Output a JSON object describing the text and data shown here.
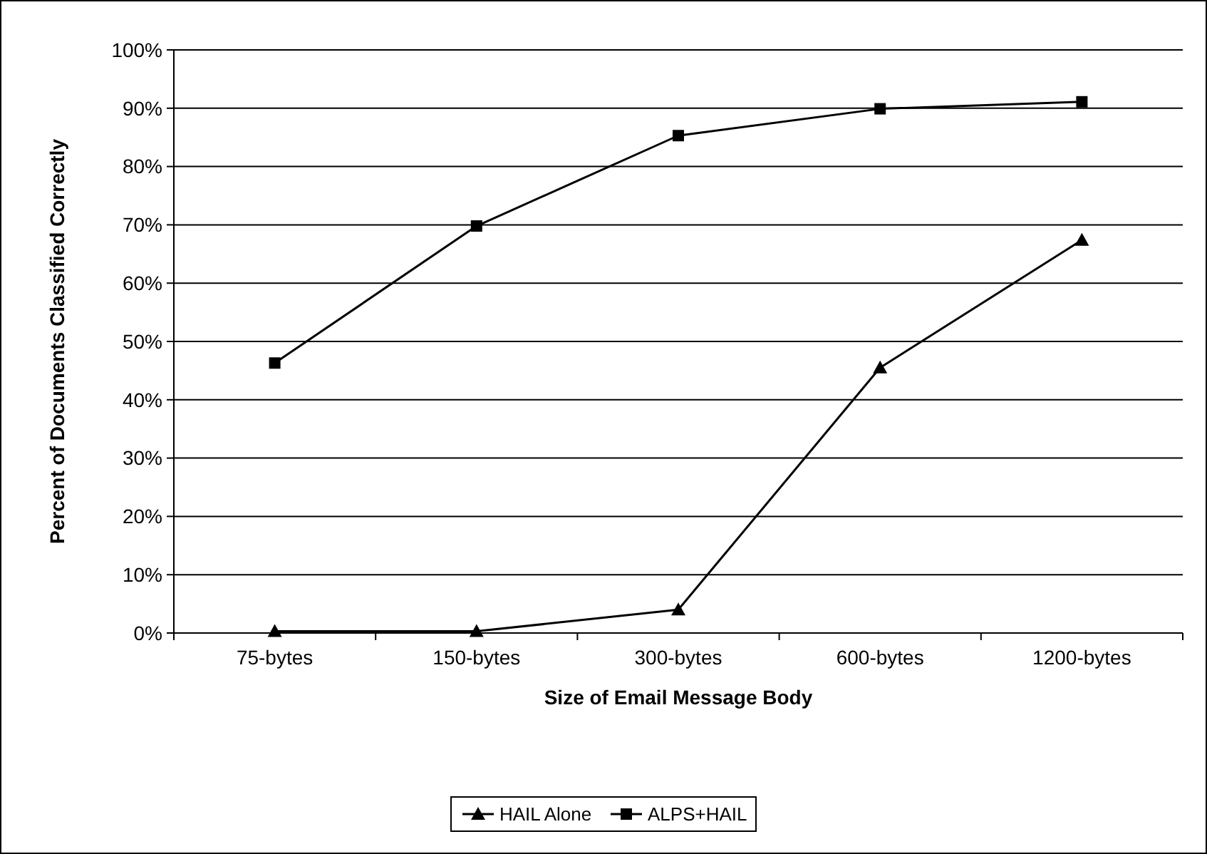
{
  "chart_data": {
    "type": "line",
    "xlabel": "Size of Email Message Body",
    "ylabel": "Percent of Documents Classified Correctly",
    "categories": [
      "75-bytes",
      "150-bytes",
      "300-bytes",
      "600-bytes",
      "1200-bytes"
    ],
    "series": [
      {
        "name": "HAIL Alone",
        "color": "#000000",
        "marker": "triangle",
        "values": [
          0.3,
          0.3,
          4,
          45.5,
          67.4
        ]
      },
      {
        "name": "ALPS+HAIL",
        "color": "#000000",
        "marker": "square",
        "values": [
          46.3,
          69.8,
          85.3,
          89.9,
          91.1
        ]
      }
    ],
    "ylim": [
      0,
      100
    ],
    "yticks": [
      {
        "value": 0,
        "label": "0%"
      },
      {
        "value": 10,
        "label": "10%"
      },
      {
        "value": 20,
        "label": "20%"
      },
      {
        "value": 30,
        "label": "30%"
      },
      {
        "value": 40,
        "label": "40%"
      },
      {
        "value": 50,
        "label": "50%"
      },
      {
        "value": 60,
        "label": "60%"
      },
      {
        "value": 70,
        "label": "70%"
      },
      {
        "value": 80,
        "label": "80%"
      },
      {
        "value": 90,
        "label": "90%"
      },
      {
        "value": 100,
        "label": "100%"
      }
    ],
    "grid": "y",
    "legend": "bottom",
    "line_style": "solid"
  }
}
